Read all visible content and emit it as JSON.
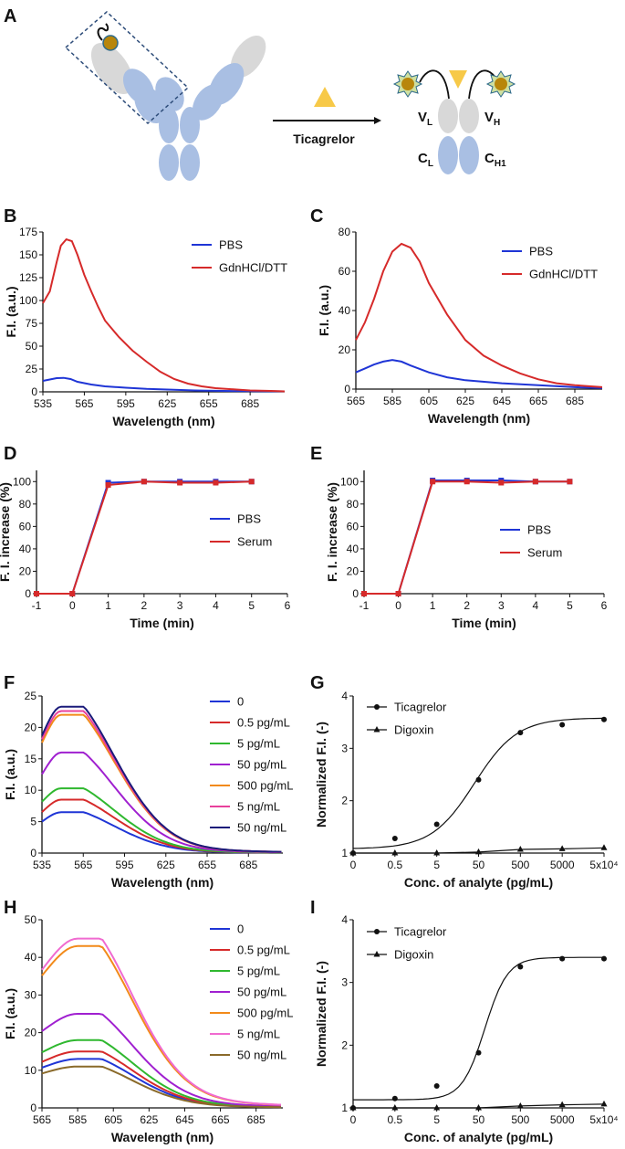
{
  "figure": {
    "panel_labels": {
      "A": "A",
      "B": "B",
      "C": "C",
      "D": "D",
      "E": "E",
      "F": "F",
      "G": "G",
      "H": "H",
      "I": "I"
    },
    "schematic": {
      "arrow_label": "Ticagrelor",
      "fab_labels": {
        "vl": "V",
        "vl_sub": "L",
        "vh": "V",
        "vh_sub": "H",
        "cl": "C",
        "cl_sub": "L",
        "ch1": "C",
        "ch1_sub": "H1"
      },
      "colors": {
        "light_chain": "#d8d8d8",
        "heavy_chain": "#a9bfe3",
        "analyte": "#f7c948",
        "dye": "#b8860b",
        "box": "#2e4d7a"
      }
    }
  },
  "chart_data": [
    {
      "id": "B",
      "type": "line",
      "xlabel": "Wavelength (nm)",
      "ylabel": "F.I. (a.u.)",
      "xlim": [
        535,
        710
      ],
      "ylim": [
        0,
        175
      ],
      "xticks": [
        535,
        565,
        595,
        625,
        655,
        685
      ],
      "yticks": [
        0,
        25,
        50,
        75,
        100,
        125,
        150,
        175
      ],
      "legend": "top-right",
      "markers": false,
      "series": [
        {
          "name": "PBS",
          "color": "#1f35d6",
          "x": [
            535,
            540,
            545,
            550,
            555,
            560,
            570,
            580,
            595,
            610,
            625,
            645,
            665,
            685,
            710
          ],
          "y": [
            12,
            13.5,
            15,
            15.3,
            14,
            11,
            8,
            6,
            4.5,
            3.2,
            2.5,
            1.5,
            1,
            0.7,
            0.5
          ]
        },
        {
          "name": "GdnHCl/DTT",
          "color": "#d62a2a",
          "x": [
            535,
            540,
            545,
            548,
            552,
            556,
            560,
            565,
            570,
            575,
            580,
            590,
            600,
            610,
            620,
            630,
            640,
            650,
            660,
            670,
            685,
            700,
            710
          ],
          "y": [
            97,
            110,
            142,
            160,
            167,
            165,
            150,
            128,
            110,
            93,
            78,
            60,
            45,
            33,
            22,
            14,
            9,
            6,
            4,
            3,
            1.5,
            1,
            0.5
          ]
        }
      ]
    },
    {
      "id": "C",
      "type": "line",
      "xlabel": "Wavelength (nm)",
      "ylabel": "F.I. (a.u.)",
      "xlim": [
        565,
        700
      ],
      "ylim": [
        0,
        80
      ],
      "xticks": [
        565,
        585,
        605,
        625,
        645,
        665,
        685
      ],
      "yticks": [
        0,
        20,
        40,
        60,
        80
      ],
      "legend": "top-right",
      "markers": false,
      "series": [
        {
          "name": "PBS",
          "color": "#1f35d6",
          "x": [
            565,
            570,
            575,
            580,
            585,
            590,
            595,
            605,
            615,
            625,
            645,
            665,
            685,
            700
          ],
          "y": [
            8.5,
            10.5,
            12.5,
            14,
            14.8,
            14,
            12,
            8.5,
            6,
            4.5,
            3,
            2,
            1,
            0.5
          ]
        },
        {
          "name": "GdnHCl/DTT",
          "color": "#d62a2a",
          "x": [
            565,
            570,
            575,
            580,
            585,
            590,
            595,
            600,
            605,
            615,
            625,
            635,
            645,
            655,
            665,
            675,
            685,
            700
          ],
          "y": [
            25,
            34,
            46,
            60,
            70,
            74,
            72,
            65,
            54,
            38,
            25,
            17,
            12,
            8,
            5,
            3,
            2,
            1
          ]
        }
      ]
    },
    {
      "id": "D",
      "type": "line",
      "xlabel": "Time (min)",
      "ylabel": "F. I. increase (%)",
      "xlim": [
        -1,
        6
      ],
      "ylim": [
        0,
        110
      ],
      "xticks": [
        -1,
        0,
        1,
        2,
        3,
        4,
        5,
        6
      ],
      "yticks": [
        0,
        20,
        40,
        60,
        80,
        100
      ],
      "legend": "right",
      "markers": true,
      "series": [
        {
          "name": "PBS",
          "color": "#1f35d6",
          "x": [
            -1,
            0,
            1,
            2,
            3,
            4,
            5
          ],
          "y": [
            0,
            0,
            99,
            100,
            100,
            100,
            100
          ]
        },
        {
          "name": "Serum",
          "color": "#d62a2a",
          "x": [
            -1,
            0,
            1,
            2,
            3,
            4,
            5
          ],
          "y": [
            0,
            0,
            97,
            100,
            99,
            99,
            100
          ]
        }
      ]
    },
    {
      "id": "E",
      "type": "line",
      "xlabel": "Time (min)",
      "ylabel": "F. I. increase (%)",
      "xlim": [
        -1,
        6
      ],
      "ylim": [
        0,
        110
      ],
      "xticks": [
        -1,
        0,
        1,
        2,
        3,
        4,
        5,
        6
      ],
      "yticks": [
        0,
        20,
        40,
        60,
        80,
        100
      ],
      "legend": "right",
      "markers": true,
      "series": [
        {
          "name": "PBS",
          "color": "#1f35d6",
          "x": [
            -1,
            0,
            1,
            2,
            3,
            4,
            5
          ],
          "y": [
            0,
            0,
            101,
            101,
            101,
            100,
            100
          ]
        },
        {
          "name": "Serum",
          "color": "#d62a2a",
          "x": [
            -1,
            0,
            1,
            2,
            3,
            4,
            5
          ],
          "y": [
            0,
            0,
            100,
            100,
            99,
            100,
            100
          ]
        }
      ]
    },
    {
      "id": "F",
      "type": "line",
      "xlabel": "Wavelength (nm)",
      "ylabel": "F.I. (a.u.)",
      "xlim": [
        535,
        710
      ],
      "ylim": [
        0,
        25
      ],
      "xticks": [
        535,
        565,
        595,
        625,
        655,
        685
      ],
      "yticks": [
        0,
        5,
        10,
        15,
        20,
        25
      ],
      "legend": "right",
      "markers": false,
      "series": [
        {
          "name": "0",
          "color": "#1f35d6",
          "peak": 6.5,
          "base": 3.5
        },
        {
          "name": "0.5 pg/mL",
          "color": "#d62a2a",
          "peak": 8.5,
          "base": 4.5
        },
        {
          "name": "5 pg/mL",
          "color": "#2fb82f",
          "peak": 10.3,
          "base": 6
        },
        {
          "name": "50 pg/mL",
          "color": "#a020d0",
          "peak": 16,
          "base": 9
        },
        {
          "name": "500 pg/mL",
          "color": "#f28a1a",
          "peak": 22,
          "base": 13
        },
        {
          "name": "5 ng/mL",
          "color": "#e8409b",
          "peak": 22.6,
          "base": 13.5
        },
        {
          "name": "50 ng/mL",
          "color": "#1a1a7a",
          "peak": 23.3,
          "base": 14
        }
      ]
    },
    {
      "id": "G",
      "type": "line",
      "xlabel": "Conc. of analyte (pg/mL)",
      "ylabel": "Normalized F.I. (-)",
      "categories": [
        "0",
        "0.5",
        "5",
        "50",
        "500",
        "5000",
        "5x10⁴"
      ],
      "ylim": [
        1,
        4
      ],
      "yticks": [
        1,
        2,
        3,
        4
      ],
      "legend": "top-left",
      "markers": true,
      "series": [
        {
          "name": "Ticagrelor",
          "color": "#111111",
          "marker": "circle",
          "values": [
            1.0,
            1.28,
            1.55,
            2.4,
            3.3,
            3.45,
            3.55
          ],
          "fit": {
            "bottom": 1.08,
            "top": 3.58,
            "logEC50": 1.6,
            "hill": 0.85
          }
        },
        {
          "name": "Digoxin",
          "color": "#111111",
          "marker": "triangle",
          "values": [
            1.0,
            1.0,
            1.0,
            1.02,
            1.07,
            1.08,
            1.1
          ]
        }
      ]
    },
    {
      "id": "H",
      "type": "line",
      "xlabel": "Wavelength (nm)",
      "ylabel": "F.I. (a.u.)",
      "xlim": [
        565,
        700
      ],
      "ylim": [
        0,
        50
      ],
      "xticks": [
        565,
        585,
        605,
        625,
        645,
        665,
        685
      ],
      "yticks": [
        0,
        10,
        20,
        30,
        40,
        50
      ],
      "legend": "right",
      "markers": false,
      "series": [
        {
          "name": "0",
          "color": "#1f35d6",
          "peak": 13,
          "base": 8
        },
        {
          "name": "0.5 pg/mL",
          "color": "#d62a2a",
          "peak": 15,
          "base": 9
        },
        {
          "name": "5 pg/mL",
          "color": "#2fb82f",
          "peak": 18,
          "base": 11
        },
        {
          "name": "50 pg/mL",
          "color": "#a020d0",
          "peak": 25,
          "base": 15
        },
        {
          "name": "500 pg/mL",
          "color": "#f28a1a",
          "peak": 43,
          "base": 26
        },
        {
          "name": "5 ng/mL",
          "color": "#f06ad0",
          "peak": 45,
          "base": 27
        },
        {
          "name": "50 ng/mL",
          "color": "#8a6a2a",
          "peak": 11,
          "base": 7
        }
      ]
    },
    {
      "id": "I",
      "type": "line",
      "xlabel": "Conc. of analyte (pg/mL)",
      "ylabel": "Normalized F.I. (-)",
      "categories": [
        "0",
        "0.5",
        "5",
        "50",
        "500",
        "5000",
        "5x10⁴"
      ],
      "ylim": [
        1,
        4
      ],
      "yticks": [
        1,
        2,
        3,
        4
      ],
      "legend": "top-left",
      "markers": true,
      "series": [
        {
          "name": "Ticagrelor",
          "color": "#111111",
          "marker": "circle",
          "values": [
            1.0,
            1.15,
            1.35,
            1.88,
            3.25,
            3.38,
            3.38
          ],
          "fit": {
            "bottom": 1.13,
            "top": 3.4,
            "logEC50": 1.85,
            "hill": 1.6
          }
        },
        {
          "name": "Digoxin",
          "color": "#111111",
          "marker": "triangle",
          "values": [
            1.0,
            1.0,
            1.0,
            1.0,
            1.03,
            1.05,
            1.06
          ]
        }
      ]
    }
  ]
}
